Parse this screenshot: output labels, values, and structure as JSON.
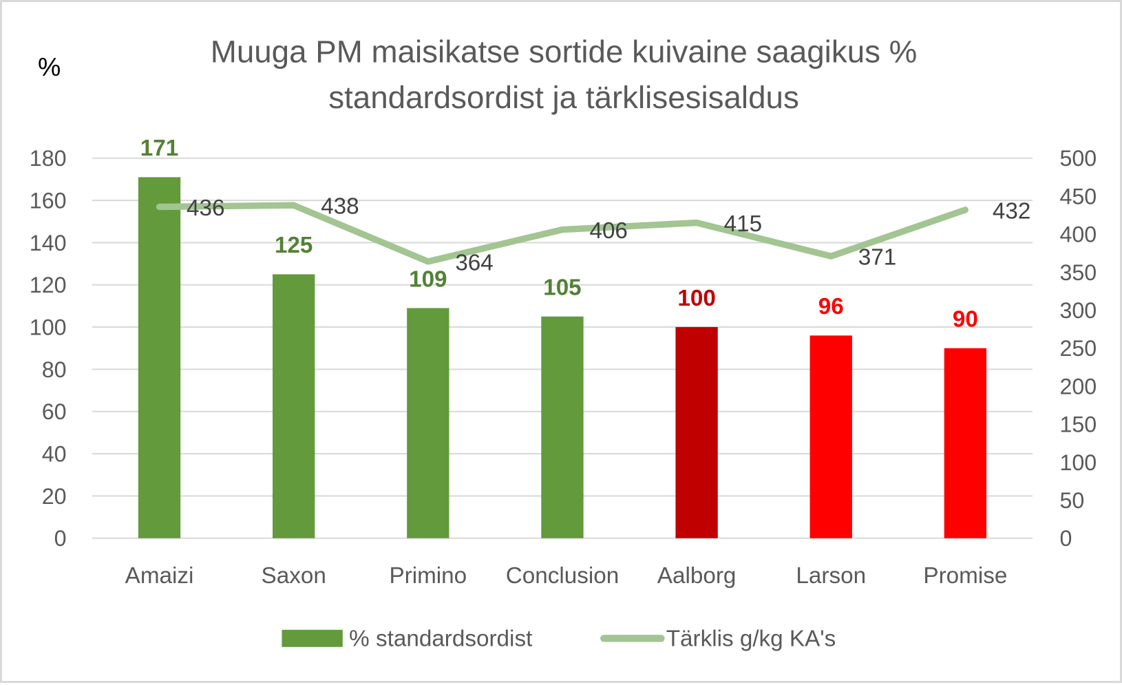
{
  "chart_data": {
    "type": "bar+line",
    "title": "Muuga PM maisikatse sortide kuivaine saagikus % standardsordist ja tärklisesisaldus",
    "title_lines": [
      "Muuga PM maisikatse sortide kuivaine saagikus %",
      "standardsordist ja tärklisesisaldus"
    ],
    "ylabel": "%",
    "y2label": "",
    "categories": [
      "Amaizi",
      "Saxon",
      "Primino",
      "Conclusion",
      "Aalborg",
      "Larson",
      "Promise"
    ],
    "ylim": [
      0,
      180
    ],
    "y_ticks": [
      0,
      20,
      40,
      60,
      80,
      100,
      120,
      140,
      160,
      180
    ],
    "y2lim": [
      0,
      500
    ],
    "y2_ticks": [
      0,
      50,
      100,
      150,
      200,
      250,
      300,
      350,
      400,
      450,
      500
    ],
    "grid": true,
    "legend_position": "bottom",
    "series": [
      {
        "name": "% standardsordist",
        "type": "bar",
        "axis": "left",
        "values": [
          171,
          125,
          109,
          105,
          100,
          96,
          90
        ],
        "colors": [
          "#629a3c",
          "#629a3c",
          "#629a3c",
          "#629a3c",
          "#c00000",
          "#ff0000",
          "#ff0000"
        ],
        "label_colors": [
          "#538135",
          "#538135",
          "#538135",
          "#538135",
          "#c00000",
          "#ff0000",
          "#ff0000"
        ]
      },
      {
        "name": "Tärklis g/kg KA's",
        "type": "line",
        "axis": "right",
        "values": [
          436,
          438,
          364,
          406,
          415,
          371,
          432
        ],
        "color": "#a2c592"
      }
    ]
  },
  "legend": {
    "bar_label": "% standardsordist",
    "line_label": "Tärklis g/kg KA's"
  }
}
